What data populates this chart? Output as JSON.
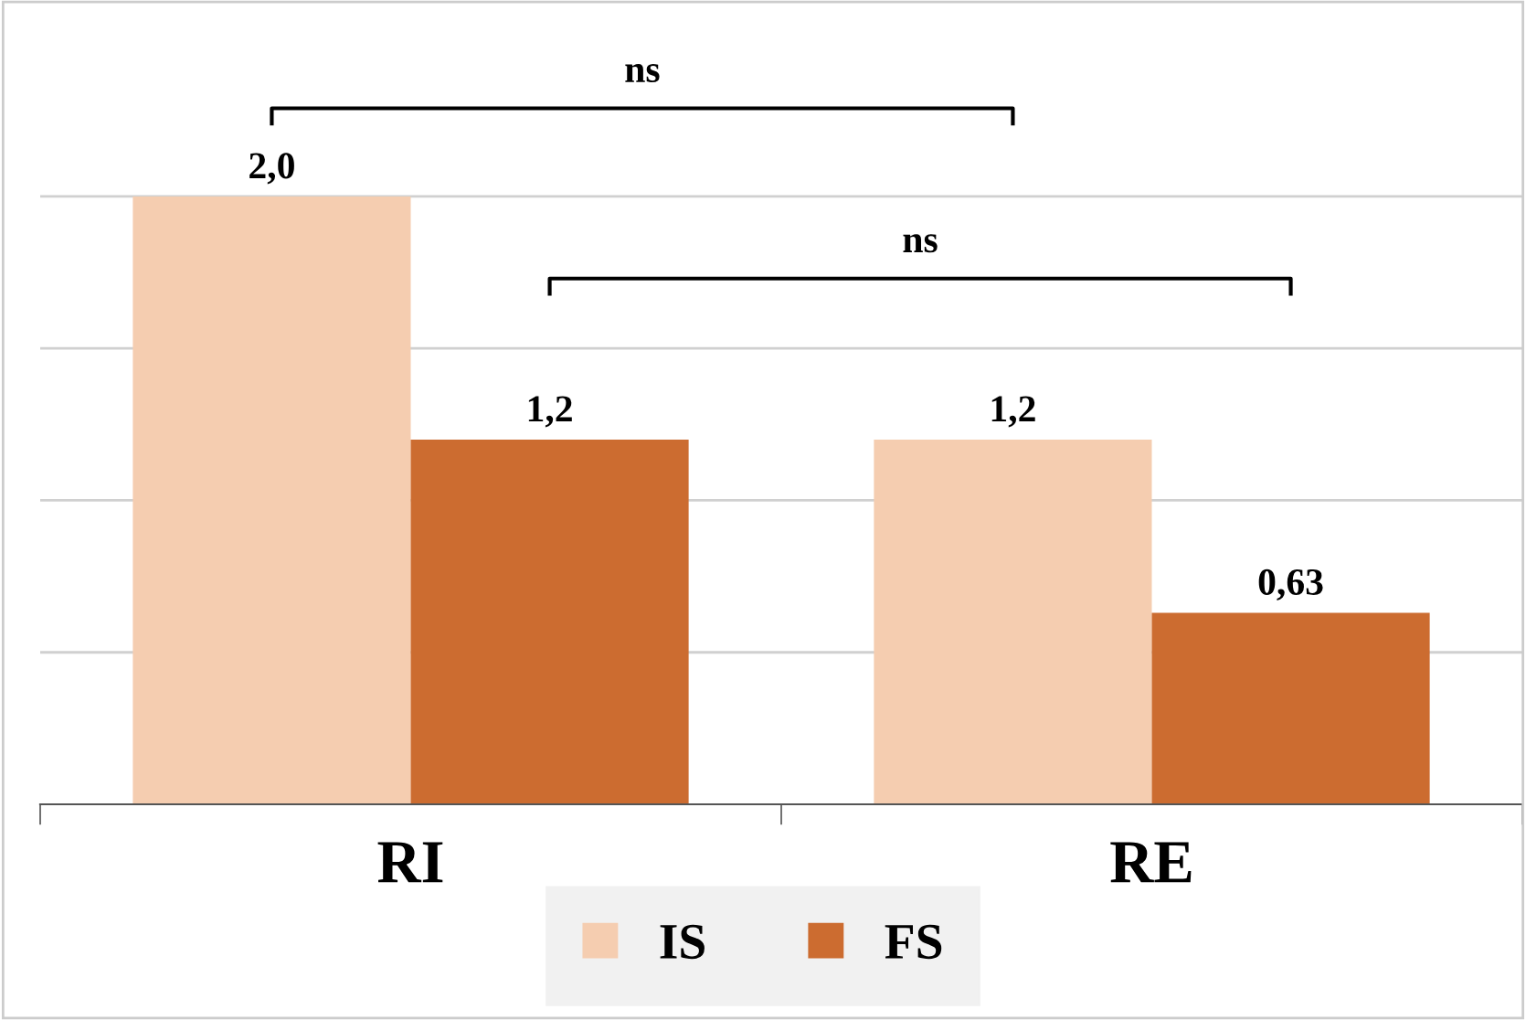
{
  "chart_data": {
    "type": "bar",
    "categories": [
      "RI",
      "RE"
    ],
    "series": [
      {
        "name": "IS",
        "color": "#f5cdb0",
        "values": [
          2.0,
          1.2
        ],
        "value_labels": [
          "2,0",
          "1,2"
        ]
      },
      {
        "name": "FS",
        "color": "#cc6c30",
        "values": [
          1.2,
          0.63
        ],
        "value_labels": [
          "1,2",
          "0,63"
        ]
      }
    ],
    "yticks": [
      {
        "value": 0.5,
        "label": null
      },
      {
        "value": 1.0,
        "label": null
      },
      {
        "value": 1.5,
        "label": null
      },
      {
        "value": 2.0,
        "label": null
      }
    ],
    "tick_labels": "x",
    "grid": "y",
    "legend": "bottom",
    "annotations": [
      "ns",
      "ns"
    ]
  }
}
